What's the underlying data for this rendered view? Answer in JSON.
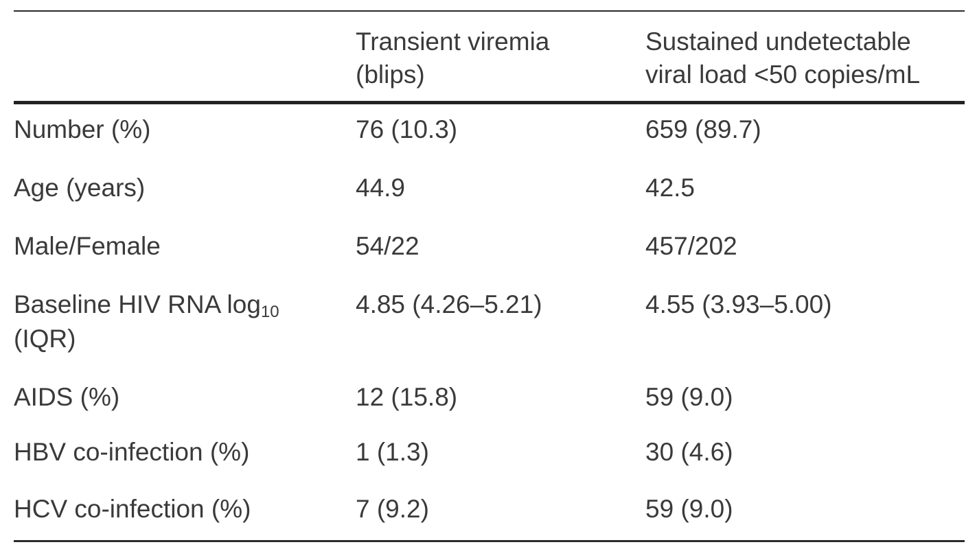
{
  "table": {
    "headers": [
      "",
      "Transient viremia\n(blips)",
      "Sustained undetectable\nviral load <50 copies/mL"
    ],
    "rows": [
      {
        "label": "Number (%)",
        "blips": "76 (10.3)",
        "sustained": "659 (89.7)"
      },
      {
        "label": "Age (years)",
        "blips": "44.9",
        "sustained": "42.5"
      },
      {
        "label": "Male/Female",
        "blips": "54/22",
        "sustained": "457/202"
      },
      {
        "label_main": "Baseline HIV RNA log",
        "label_sub": "10",
        "label_line2": "(IQR)",
        "blips": "4.85 (4.26–5.21)",
        "sustained": "4.55 (3.93–5.00)"
      },
      {
        "label": "AIDS (%)",
        "blips": "12 (15.8)",
        "sustained": "59 (9.0)"
      },
      {
        "label": "HBV co-infection (%)",
        "blips": "1 (1.3)",
        "sustained": "30 (4.6)"
      },
      {
        "label": "HCV co-infection (%)",
        "blips": "7 (9.2)",
        "sustained": "59 (9.0)"
      }
    ]
  }
}
